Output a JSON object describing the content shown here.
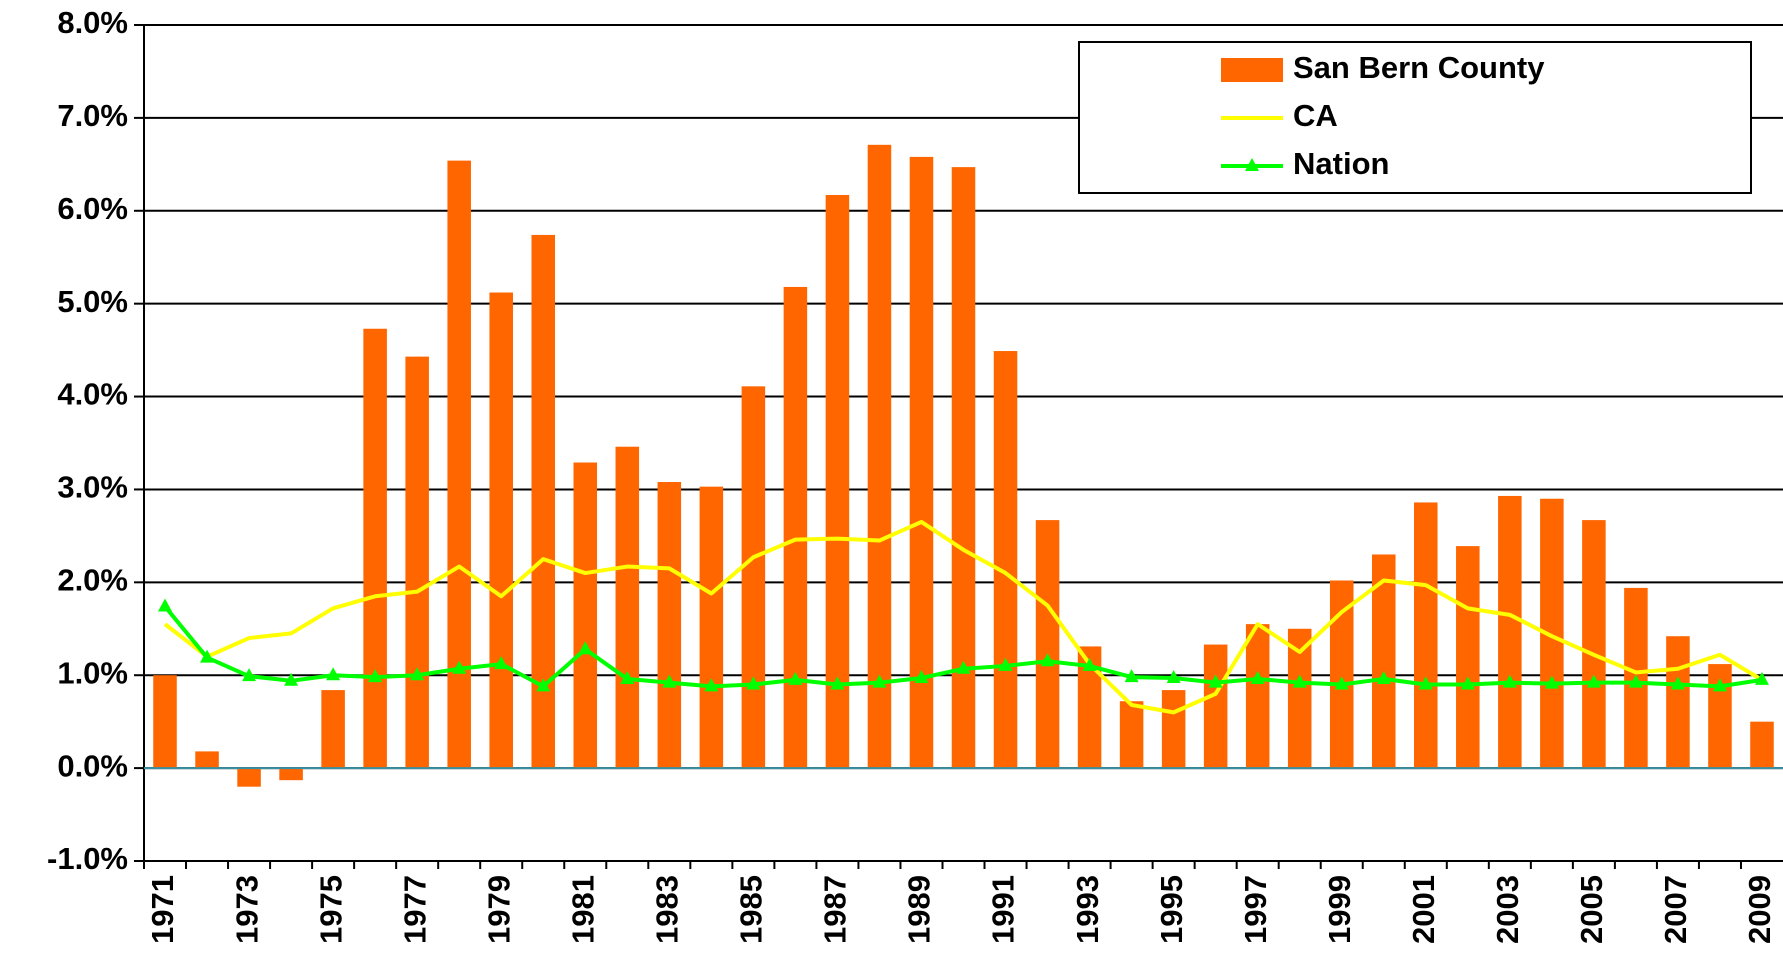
{
  "chart_data": {
    "type": "bar_line",
    "categories": [
      "1971",
      null,
      "1973",
      null,
      "1975",
      null,
      "1977",
      null,
      "1979",
      null,
      "1981",
      null,
      "1983",
      null,
      "1985",
      null,
      "1987",
      null,
      "1989",
      null,
      "1991",
      null,
      "1993",
      null,
      "1995",
      null,
      "1997",
      null,
      "1999",
      null,
      "2001",
      null,
      "2003",
      null,
      "2005",
      null,
      "2007",
      null,
      "2009"
    ],
    "series": [
      {
        "name": "San Bern County",
        "kind": "bar",
        "color": "#ff6600",
        "values": [
          1.0,
          0.18,
          -0.2,
          -0.13,
          0.84,
          4.73,
          4.43,
          6.54,
          5.12,
          5.74,
          3.29,
          3.46,
          3.08,
          3.03,
          4.11,
          5.18,
          6.17,
          6.71,
          6.58,
          6.47,
          4.49,
          2.67,
          1.31,
          0.72,
          0.84,
          1.33,
          1.55,
          1.5,
          2.02,
          2.3,
          2.86,
          2.39,
          2.93,
          2.9,
          2.67,
          1.94,
          1.42,
          1.12,
          0.5
        ]
      },
      {
        "name": "CA",
        "kind": "line",
        "color": "#ffff00",
        "values": [
          1.55,
          1.2,
          1.4,
          1.45,
          1.72,
          1.85,
          1.9,
          2.17,
          1.85,
          2.25,
          2.1,
          2.17,
          2.15,
          1.88,
          2.27,
          2.46,
          2.47,
          2.45,
          2.65,
          2.35,
          2.1,
          1.75,
          1.12,
          0.68,
          0.6,
          0.8,
          1.55,
          1.25,
          1.68,
          2.02,
          1.97,
          1.72,
          1.65,
          1.42,
          1.22,
          1.03,
          1.07,
          1.22,
          0.95
        ]
      },
      {
        "name": "Nation",
        "kind": "line",
        "marker": "triangle",
        "color": "#00ff00",
        "values": [
          1.74,
          1.19,
          0.99,
          0.94,
          1.0,
          0.98,
          1.0,
          1.07,
          1.12,
          0.88,
          1.28,
          0.96,
          0.92,
          0.88,
          0.9,
          0.95,
          0.9,
          0.92,
          0.97,
          1.07,
          1.1,
          1.15,
          1.1,
          0.98,
          0.97,
          0.92,
          0.96,
          0.92,
          0.9,
          0.96,
          0.9,
          0.9,
          0.92,
          0.91,
          0.92,
          0.92,
          0.9,
          0.88,
          0.95
        ]
      }
    ],
    "ylim": [
      -1,
      8
    ],
    "yticks": [
      {
        "value": -1,
        "label": "-1.0%"
      },
      {
        "value": 0,
        "label": "0.0%"
      },
      {
        "value": 1,
        "label": "1.0%"
      },
      {
        "value": 2,
        "label": "2.0%"
      },
      {
        "value": 3,
        "label": "3.0%"
      },
      {
        "value": 4,
        "label": "4.0%"
      },
      {
        "value": 5,
        "label": "5.0%"
      },
      {
        "value": 6,
        "label": "6.0%"
      },
      {
        "value": 7,
        "label": "7.0%"
      },
      {
        "value": 8,
        "label": "8.0%"
      }
    ],
    "grid": true,
    "legend": "upper right"
  }
}
